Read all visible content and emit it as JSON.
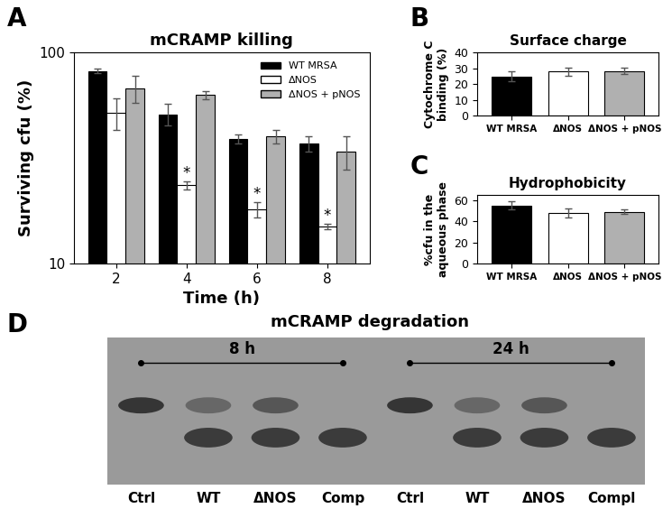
{
  "chart_data": [
    {
      "type": "bar",
      "panel_label": "A",
      "title": "mCRAMP killing",
      "x_label": "Time (h)",
      "y_label": "Surviving cfu (%)",
      "categories": [
        "2",
        "4",
        "6",
        "8"
      ],
      "log": "y",
      "ylim": [
        10,
        100
      ],
      "yticks": [
        10,
        100
      ],
      "legend": "upper right",
      "series": [
        {
          "name": "WT MRSA",
          "color": "#000000",
          "values": [
            82,
            51,
            39,
            37
          ],
          "errors": [
            2,
            6,
            2,
            3
          ]
        },
        {
          "name": "ΔNOS",
          "color": "#ffffff",
          "values": [
            52,
            23.5,
            18,
            15
          ],
          "errors": [
            9,
            1,
            1.5,
            0.5
          ]
        },
        {
          "name": "ΔNOS + pNOS",
          "color": "#b0b0b0",
          "values": [
            68,
            63,
            40,
            34
          ],
          "errors": [
            10,
            3,
            3,
            6
          ]
        }
      ],
      "annotations": [
        {
          "series": "ΔNOS",
          "category": "4",
          "text": "*"
        },
        {
          "series": "ΔNOS",
          "category": "6",
          "text": "*"
        },
        {
          "series": "ΔNOS",
          "category": "8",
          "text": "*"
        }
      ]
    },
    {
      "type": "bar",
      "panel_label": "B",
      "title": "Surface charge",
      "y_label": "Cytochrome C\nbinding (%)",
      "categories": [
        "WT MRSA",
        "ΔNOS",
        "ΔNOS + pNOS"
      ],
      "values": [
        25,
        28,
        28.5
      ],
      "errors": [
        3,
        2.5,
        2
      ],
      "colors": [
        "#000000",
        "#ffffff",
        "#b0b0b0"
      ],
      "ylim": [
        0,
        40
      ],
      "yticks": [
        0,
        10,
        20,
        30,
        40
      ]
    },
    {
      "type": "bar",
      "panel_label": "C",
      "title": "Hydrophobicity",
      "y_label": "%cfu in the\naqueous phase",
      "categories": [
        "WT MRSA",
        "ΔNOS",
        "ΔNOS + pNOS"
      ],
      "values": [
        55,
        48,
        49
      ],
      "errors": [
        4,
        4,
        2
      ],
      "colors": [
        "#000000",
        "#ffffff",
        "#b0b0b0"
      ],
      "ylim": [
        0,
        65
      ],
      "yticks": [
        0,
        20,
        40,
        60
      ]
    }
  ],
  "gel": {
    "panel_label": "D",
    "title": "mCRAMP degradation",
    "groups": [
      {
        "label": "8 h",
        "lanes": [
          "Ctrl",
          "WT",
          "ΔNOS",
          "Comp"
        ]
      },
      {
        "label": "24 h",
        "lanes": [
          "Ctrl",
          "WT",
          "ΔNOS",
          "Compl"
        ]
      }
    ]
  }
}
